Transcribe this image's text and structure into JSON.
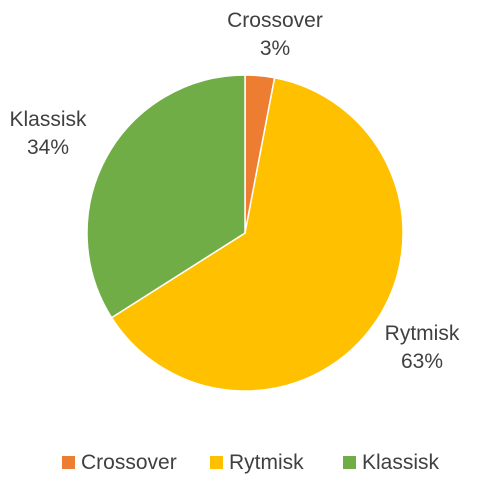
{
  "chart_data": {
    "type": "pie",
    "title": "",
    "categories": [
      "Crossover",
      "Rytmisk",
      "Klassisk"
    ],
    "values": [
      3,
      63,
      34
    ],
    "percent_labels": [
      "3%",
      "63%",
      "34%"
    ],
    "colors": [
      "#ED7D31",
      "#FFC000",
      "#70AD47"
    ],
    "legend_position": "bottom",
    "start_angle_deg": 0,
    "direction": "clockwise"
  }
}
